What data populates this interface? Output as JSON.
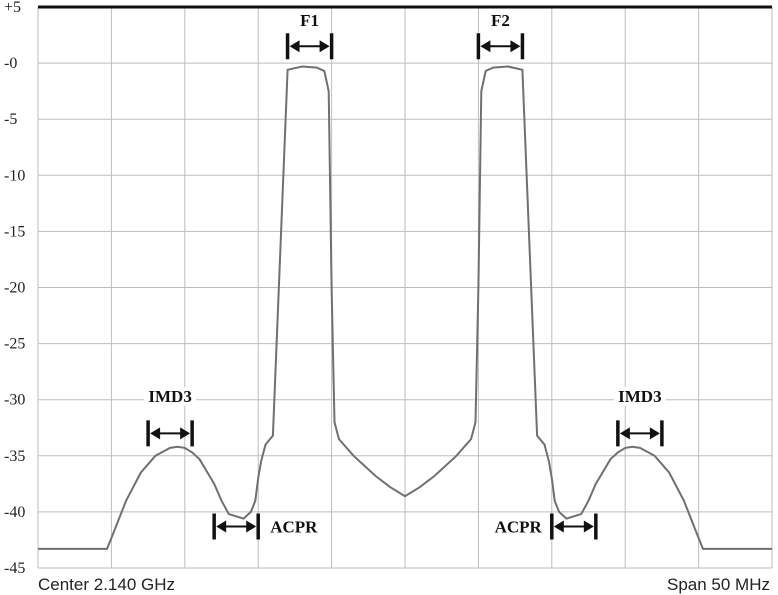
{
  "chart_data": {
    "type": "line",
    "title": "",
    "xlabel": "",
    "ylabel": "",
    "x_unit": "MHz offset from center",
    "xlim": [
      -25,
      25
    ],
    "ylim": [
      -45,
      5
    ],
    "y_ticks": [
      5,
      0,
      -5,
      -10,
      -15,
      -20,
      -25,
      -30,
      -35,
      -40,
      -45
    ],
    "y_tick_labels": [
      "+5",
      "-0",
      "-5",
      "-10",
      "-15",
      "-20",
      "-25",
      "-30",
      "-35",
      "-40",
      "-45"
    ],
    "grid": true,
    "grid_x_divisions": 10,
    "grid_y_divisions": 10,
    "footer_left": "Center 2.140 GHz",
    "footer_right": "Span 50 MHz",
    "series": [
      {
        "color": "#707070",
        "x": [
          -25,
          -20.3,
          -19.9,
          -19,
          -18,
          -17,
          -16,
          -15.5,
          -15,
          -14.5,
          -14,
          -13,
          -12.5,
          -12,
          -11,
          -10.5,
          -10.2,
          -10,
          -9.8,
          -9.5,
          -9,
          -8,
          -7,
          -6,
          -5.5,
          -5.2,
          -5,
          -4.8,
          -4.5,
          -3.5,
          -2,
          -1,
          0,
          1,
          2,
          3.5,
          4.5,
          4.8,
          5,
          5.2,
          5.5,
          6,
          7,
          8,
          9,
          9.5,
          9.8,
          10,
          10.2,
          10.5,
          11,
          12,
          12.5,
          13,
          14,
          14.5,
          15,
          15.5,
          16,
          17,
          18,
          19,
          19.9,
          20.3,
          25
        ],
        "y": [
          -43.3,
          -43.3,
          -42,
          -39,
          -36.5,
          -35,
          -34.3,
          -34.2,
          -34.3,
          -34.7,
          -35.3,
          -37.5,
          -39,
          -40.2,
          -40.6,
          -40,
          -39,
          -37,
          -35.5,
          -34,
          -33.2,
          -0.6,
          -0.3,
          -0.4,
          -0.7,
          -2.5,
          -20,
          -32,
          -33.5,
          -35,
          -36.8,
          -37.8,
          -38.6,
          -37.8,
          -36.8,
          -35,
          -33.5,
          -32,
          -20,
          -2.5,
          -0.7,
          -0.4,
          -0.3,
          -0.6,
          -33.2,
          -34,
          -35.5,
          -37,
          -39,
          -40,
          -40.6,
          -40.2,
          -39,
          -37.5,
          -35.3,
          -34.7,
          -34.3,
          -34.2,
          -34.3,
          -35,
          -36.5,
          -39,
          -42,
          -43.3,
          -43.3
        ]
      }
    ],
    "annotations": [
      {
        "label": "F1",
        "x_start": -8,
        "x_end": -5,
        "y": 1.5,
        "label_y": 3.3,
        "label_pos": "above"
      },
      {
        "label": "F2",
        "x_start": 5,
        "x_end": 8,
        "y": 1.5,
        "label_y": 3.3,
        "label_pos": "above"
      },
      {
        "label": "IMD3",
        "x_start": -17.5,
        "x_end": -14.5,
        "y": -33,
        "label_y": -30.2,
        "label_pos": "above"
      },
      {
        "label": "IMD3",
        "x_start": 14.5,
        "x_end": 17.5,
        "y": -33,
        "label_y": -30.2,
        "label_pos": "above"
      },
      {
        "label": "ACPR",
        "x_start": -13,
        "x_end": -10,
        "y": -41.3,
        "label_y": -41.3,
        "label_pos": "right"
      },
      {
        "label": "ACPR",
        "x_start": 10,
        "x_end": 13,
        "y": -41.3,
        "label_y": -41.3,
        "label_pos": "left"
      }
    ]
  }
}
